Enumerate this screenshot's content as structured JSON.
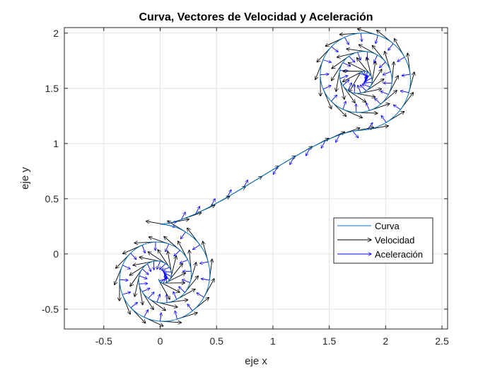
{
  "chart_data": {
    "type": "line",
    "title": "Curva, Vectores de Velocidad y Aceleración",
    "xlabel": "eje x",
    "ylabel": "eje y",
    "xlim": [
      -0.85,
      2.55
    ],
    "ylim": [
      -0.68,
      2.05
    ],
    "xticks": [
      -0.5,
      0,
      0.5,
      1,
      1.5,
      2,
      2.5
    ],
    "yticks": [
      -0.5,
      0,
      0.5,
      1,
      1.5,
      2
    ],
    "xtick_labels": [
      "-0.5",
      "0",
      "0.5",
      "1",
      "1.5",
      "2",
      "2.5"
    ],
    "ytick_labels": [
      "-0.5",
      "0",
      "0.5",
      "1",
      "1.5",
      "2"
    ],
    "grid": true,
    "legend_position": "right",
    "series": [
      {
        "name": "Curva",
        "kind": "line",
        "color": "#0072BD"
      },
      {
        "name": "Velocidad",
        "kind": "quiver",
        "color": "#000000"
      },
      {
        "name": "Aceleración",
        "kind": "quiver",
        "color": "#0000FF"
      }
    ],
    "curve": {
      "description_key": "spiral",
      "center_lower": [
        0.0,
        -0.21
      ],
      "center_upper": [
        1.78,
        1.6
      ],
      "join_point": [
        0.89,
        0.695
      ],
      "outer_radius": 0.5
    }
  }
}
